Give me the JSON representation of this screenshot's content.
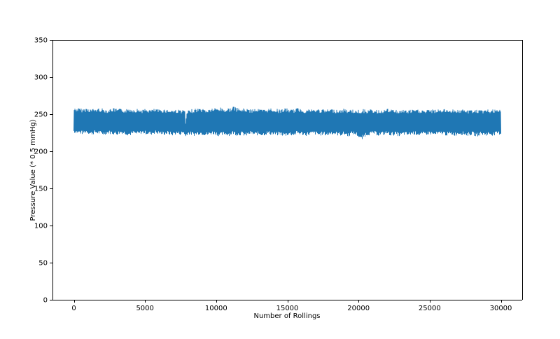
{
  "chart_data": {
    "type": "line",
    "title": "",
    "xlabel": "Number of Rollings",
    "ylabel": "Pressure Value (* 0.5 mmHg)",
    "xlim": [
      -1500,
      31500
    ],
    "ylim": [
      0,
      350
    ],
    "x_ticks": [
      0,
      5000,
      10000,
      15000,
      20000,
      25000,
      30000
    ],
    "y_ticks": [
      0,
      50,
      100,
      150,
      200,
      250,
      300,
      350
    ],
    "grid": false,
    "legend": "none",
    "x_range": [
      0,
      30000
    ],
    "series": [
      {
        "color": "#1f77b4",
        "x": [
          0,
          300,
          600,
          900,
          1200,
          1500,
          1800,
          2100,
          2400,
          2700,
          3000,
          3300,
          3600,
          3900,
          4200,
          4500,
          4800,
          5100,
          5400,
          5700,
          6000,
          6300,
          6600,
          6900,
          7200,
          7500,
          7700,
          7800,
          7850,
          7900,
          8000,
          8200,
          8500,
          8800,
          9100,
          9400,
          9700,
          10000,
          10300,
          10600,
          10900,
          11200,
          11500,
          11800,
          12100,
          12400,
          12700,
          13000,
          13300,
          13600,
          13900,
          14200,
          14500,
          14800,
          15100,
          15400,
          15700,
          16000,
          16300,
          16600,
          16900,
          17200,
          17500,
          17800,
          18100,
          18400,
          18700,
          19000,
          19300,
          19600,
          19900,
          20200,
          20500,
          20800,
          21100,
          21400,
          21700,
          22000,
          22300,
          22600,
          22900,
          23200,
          23500,
          23800,
          24100,
          24400,
          24700,
          25000,
          25300,
          25600,
          25900,
          26200,
          26500,
          26800,
          27100,
          27400,
          27700,
          28000,
          28300,
          28600,
          28900,
          29200,
          29500,
          29800,
          30000
        ],
        "upper": [
          258,
          258,
          257,
          258,
          257,
          257,
          258,
          257,
          256,
          258,
          257,
          257,
          256,
          258,
          257,
          257,
          256,
          257,
          256,
          257,
          256,
          257,
          256,
          256,
          256,
          256,
          255,
          256,
          235,
          248,
          254,
          256,
          257,
          258,
          257,
          256,
          258,
          258,
          259,
          257,
          258,
          260,
          258,
          257,
          258,
          256,
          258,
          257,
          256,
          257,
          258,
          257,
          256,
          258,
          257,
          256,
          258,
          257,
          256,
          257,
          256,
          257,
          256,
          256,
          257,
          256,
          256,
          257,
          256,
          256,
          255,
          257,
          256,
          256,
          256,
          255,
          256,
          257,
          256,
          256,
          255,
          256,
          255,
          256,
          256,
          256,
          255,
          256,
          256,
          256,
          257,
          256,
          257,
          256,
          256,
          256,
          255,
          256,
          256,
          255,
          256,
          256,
          256,
          255,
          256
        ],
        "lower": [
          225,
          224,
          223,
          225,
          222,
          224,
          223,
          222,
          224,
          223,
          222,
          224,
          223,
          221,
          223,
          222,
          224,
          223,
          222,
          224,
          223,
          222,
          223,
          221,
          223,
          222,
          224,
          222,
          218,
          221,
          223,
          222,
          221,
          223,
          222,
          221,
          223,
          222,
          220,
          222,
          221,
          223,
          221,
          222,
          220,
          223,
          221,
          222,
          221,
          223,
          222,
          221,
          222,
          220,
          222,
          221,
          223,
          222,
          221,
          222,
          223,
          221,
          222,
          221,
          223,
          222,
          221,
          222,
          220,
          223,
          221,
          214,
          221,
          222,
          223,
          221,
          222,
          223,
          221,
          222,
          220,
          222,
          221,
          223,
          222,
          221,
          222,
          223,
          221,
          222,
          223,
          221,
          222,
          221,
          223,
          222,
          221,
          222,
          220,
          222,
          221,
          222,
          221,
          223,
          222
        ]
      }
    ]
  }
}
